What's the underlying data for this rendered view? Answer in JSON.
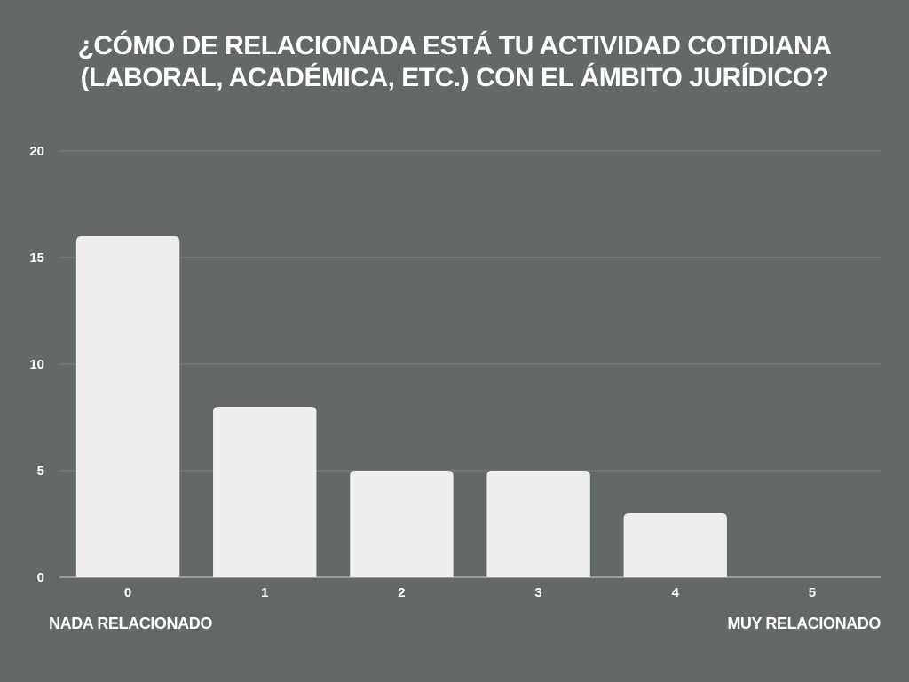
{
  "chart_data": {
    "type": "bar",
    "title": "¿CÓMO DE RELACIONADA ESTÁ TU ACTIVIDAD COTIDIANA\n(LABORAL, ACADÉMICA, ETC.) CON EL ÁMBITO JURÍDICO?",
    "categories": [
      "0",
      "1",
      "2",
      "3",
      "4",
      "5"
    ],
    "values": [
      16,
      8,
      5,
      5,
      3,
      0
    ],
    "ylim": [
      0,
      20
    ],
    "yticks": [
      "0",
      "5",
      "10",
      "15",
      "20"
    ],
    "grid": true,
    "scale_labels": {
      "low": "NADA RELACIONADO",
      "high": "MUY RELACIONADO"
    },
    "colors": {
      "background": "#636a65",
      "bar": "#efefef",
      "grid": "#7d837f",
      "text": "#ffffff"
    }
  }
}
